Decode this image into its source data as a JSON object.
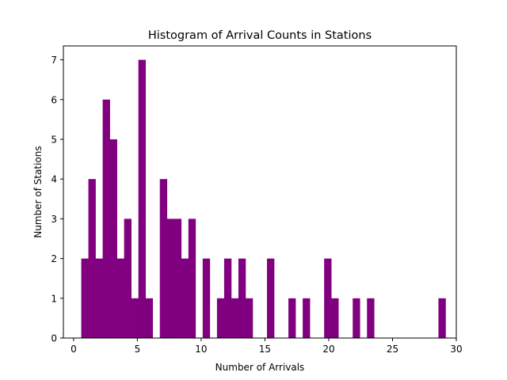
{
  "chart_data": {
    "type": "bar",
    "title": "Histogram of Arrival Counts in Stations",
    "xlabel": "Number of Arrivals",
    "ylabel": "Number of Stations",
    "xlim": [
      -0.8,
      30.0
    ],
    "ylim": [
      0,
      7.35
    ],
    "xticks": [
      0,
      5,
      10,
      15,
      20,
      25,
      30
    ],
    "yticks": [
      0,
      1,
      2,
      3,
      4,
      5,
      6,
      7
    ],
    "grid": false,
    "bar_color": "#800080",
    "bin_start": 0.6,
    "bin_width": 0.56,
    "counts": [
      2,
      4,
      2,
      6,
      5,
      2,
      3,
      1,
      7,
      1,
      0,
      4,
      3,
      3,
      2,
      3,
      0,
      2,
      0,
      1,
      2,
      1,
      2,
      1,
      0,
      0,
      2,
      0,
      0,
      1,
      0,
      1,
      0,
      0,
      2,
      1,
      0,
      0,
      1,
      0,
      1,
      0,
      0,
      0,
      0,
      0,
      0,
      0,
      0,
      0,
      1
    ]
  }
}
